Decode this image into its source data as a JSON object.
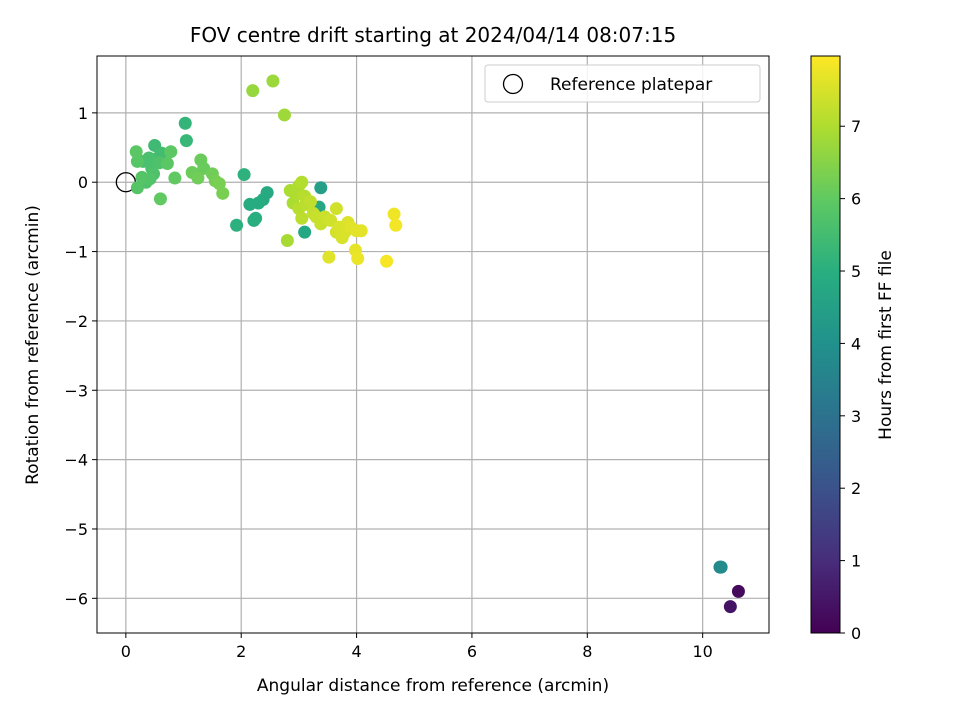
{
  "chart_data": {
    "type": "scatter",
    "title": "FOV centre drift starting at 2024/04/14 08:07:15",
    "xlabel": "Angular distance from reference (arcmin)",
    "ylabel": "Rotation from reference (arcmin)",
    "xlim": [
      -0.5,
      11.15
    ],
    "ylim": [
      -6.5,
      1.82
    ],
    "x_ticks": [
      0,
      2,
      4,
      6,
      8,
      10
    ],
    "y_ticks": [
      1,
      0,
      -1,
      -2,
      -3,
      -4,
      -5,
      -6
    ],
    "grid": true,
    "legend": {
      "position": "top-right",
      "entries": [
        "Reference platepar"
      ]
    },
    "reference_point": {
      "x": 0,
      "y": 0,
      "label": "Reference platepar"
    },
    "colorbar": {
      "label": "Hours from first FF file",
      "range": [
        0,
        7.97
      ],
      "ticks": [
        0,
        1,
        2,
        3,
        4,
        5,
        6,
        7
      ],
      "colormap": "viridis"
    },
    "points": [
      {
        "x": 10.62,
        "y": -5.9,
        "hours": 0.2
      },
      {
        "x": 10.48,
        "y": -6.12,
        "hours": 0.4
      },
      {
        "x": 10.3,
        "y": -5.55,
        "hours": 3.6
      },
      {
        "x": 10.32,
        "y": -5.55,
        "hours": 3.8
      },
      {
        "x": 3.38,
        "y": -0.08,
        "hours": 4.5
      },
      {
        "x": 3.35,
        "y": -0.36,
        "hours": 4.7
      },
      {
        "x": 3.1,
        "y": -0.72,
        "hours": 4.75
      },
      {
        "x": 2.45,
        "y": -0.15,
        "hours": 4.8
      },
      {
        "x": 2.38,
        "y": -0.25,
        "hours": 4.85
      },
      {
        "x": 2.3,
        "y": -0.3,
        "hours": 4.9
      },
      {
        "x": 2.15,
        "y": -0.32,
        "hours": 4.9
      },
      {
        "x": 2.22,
        "y": -0.55,
        "hours": 4.95
      },
      {
        "x": 2.25,
        "y": -0.52,
        "hours": 5.0
      },
      {
        "x": 1.92,
        "y": -0.62,
        "hours": 5.05
      },
      {
        "x": 2.05,
        "y": 0.11,
        "hours": 5.1
      },
      {
        "x": 1.03,
        "y": 0.85,
        "hours": 5.2
      },
      {
        "x": 1.05,
        "y": 0.6,
        "hours": 5.3
      },
      {
        "x": 0.5,
        "y": 0.53,
        "hours": 5.4
      },
      {
        "x": 0.55,
        "y": 0.35,
        "hours": 5.5
      },
      {
        "x": 0.62,
        "y": 0.42,
        "hours": 5.5
      },
      {
        "x": 0.4,
        "y": 0.35,
        "hours": 5.6
      },
      {
        "x": 0.3,
        "y": 0.3,
        "hours": 5.6
      },
      {
        "x": 0.45,
        "y": 0.2,
        "hours": 5.6
      },
      {
        "x": 0.58,
        "y": 0.28,
        "hours": 5.7
      },
      {
        "x": 0.48,
        "y": 0.12,
        "hours": 5.7
      },
      {
        "x": 0.35,
        "y": 0.0,
        "hours": 5.7
      },
      {
        "x": 0.42,
        "y": 0.05,
        "hours": 5.75
      },
      {
        "x": 0.28,
        "y": 0.07,
        "hours": 5.8
      },
      {
        "x": 0.2,
        "y": -0.08,
        "hours": 5.8
      },
      {
        "x": 0.2,
        "y": 0.3,
        "hours": 5.85
      },
      {
        "x": 0.18,
        "y": 0.44,
        "hours": 5.9
      },
      {
        "x": 0.72,
        "y": 0.27,
        "hours": 5.9
      },
      {
        "x": 0.78,
        "y": 0.44,
        "hours": 5.95
      },
      {
        "x": 0.85,
        "y": 0.06,
        "hours": 6.0
      },
      {
        "x": 0.6,
        "y": -0.24,
        "hours": 6.0
      },
      {
        "x": 1.3,
        "y": 0.32,
        "hours": 6.1
      },
      {
        "x": 1.35,
        "y": 0.2,
        "hours": 6.1
      },
      {
        "x": 1.15,
        "y": 0.14,
        "hours": 6.15
      },
      {
        "x": 1.25,
        "y": 0.06,
        "hours": 6.2
      },
      {
        "x": 1.5,
        "y": 0.12,
        "hours": 6.2
      },
      {
        "x": 1.55,
        "y": 0.02,
        "hours": 6.25
      },
      {
        "x": 1.62,
        "y": -0.02,
        "hours": 6.3
      },
      {
        "x": 1.68,
        "y": -0.16,
        "hours": 6.3
      },
      {
        "x": 2.2,
        "y": 1.32,
        "hours": 6.7
      },
      {
        "x": 2.55,
        "y": 1.46,
        "hours": 6.75
      },
      {
        "x": 2.75,
        "y": 0.97,
        "hours": 6.8
      },
      {
        "x": 2.8,
        "y": -0.84,
        "hours": 6.9
      },
      {
        "x": 2.85,
        "y": -0.12,
        "hours": 6.95
      },
      {
        "x": 2.9,
        "y": -0.3,
        "hours": 6.95
      },
      {
        "x": 2.95,
        "y": -0.18,
        "hours": 7.0
      },
      {
        "x": 3.0,
        "y": -0.05,
        "hours": 7.0
      },
      {
        "x": 3.05,
        "y": 0.0,
        "hours": 7.05
      },
      {
        "x": 3.1,
        "y": -0.2,
        "hours": 7.1
      },
      {
        "x": 3.0,
        "y": -0.38,
        "hours": 7.1
      },
      {
        "x": 3.05,
        "y": -0.52,
        "hours": 7.15
      },
      {
        "x": 3.12,
        "y": -0.32,
        "hours": 7.15
      },
      {
        "x": 3.2,
        "y": -0.28,
        "hours": 7.2
      },
      {
        "x": 3.25,
        "y": -0.45,
        "hours": 7.25
      },
      {
        "x": 3.3,
        "y": -0.5,
        "hours": 7.3
      },
      {
        "x": 3.38,
        "y": -0.6,
        "hours": 7.3
      },
      {
        "x": 3.45,
        "y": -0.5,
        "hours": 7.35
      },
      {
        "x": 3.55,
        "y": -0.55,
        "hours": 7.4
      },
      {
        "x": 3.65,
        "y": -0.38,
        "hours": 7.4
      },
      {
        "x": 3.65,
        "y": -0.72,
        "hours": 7.45
      },
      {
        "x": 3.7,
        "y": -0.65,
        "hours": 7.5
      },
      {
        "x": 3.75,
        "y": -0.8,
        "hours": 7.5
      },
      {
        "x": 3.8,
        "y": -0.72,
        "hours": 7.55
      },
      {
        "x": 3.85,
        "y": -0.58,
        "hours": 7.55
      },
      {
        "x": 3.9,
        "y": -0.65,
        "hours": 7.6
      },
      {
        "x": 4.0,
        "y": -0.7,
        "hours": 7.65
      },
      {
        "x": 4.08,
        "y": -0.7,
        "hours": 7.65
      },
      {
        "x": 3.52,
        "y": -1.08,
        "hours": 7.6
      },
      {
        "x": 3.98,
        "y": -0.98,
        "hours": 7.7
      },
      {
        "x": 4.02,
        "y": -1.1,
        "hours": 7.75
      },
      {
        "x": 4.65,
        "y": -0.46,
        "hours": 7.8
      },
      {
        "x": 4.68,
        "y": -0.62,
        "hours": 7.85
      },
      {
        "x": 4.52,
        "y": -1.14,
        "hours": 7.9
      }
    ]
  }
}
